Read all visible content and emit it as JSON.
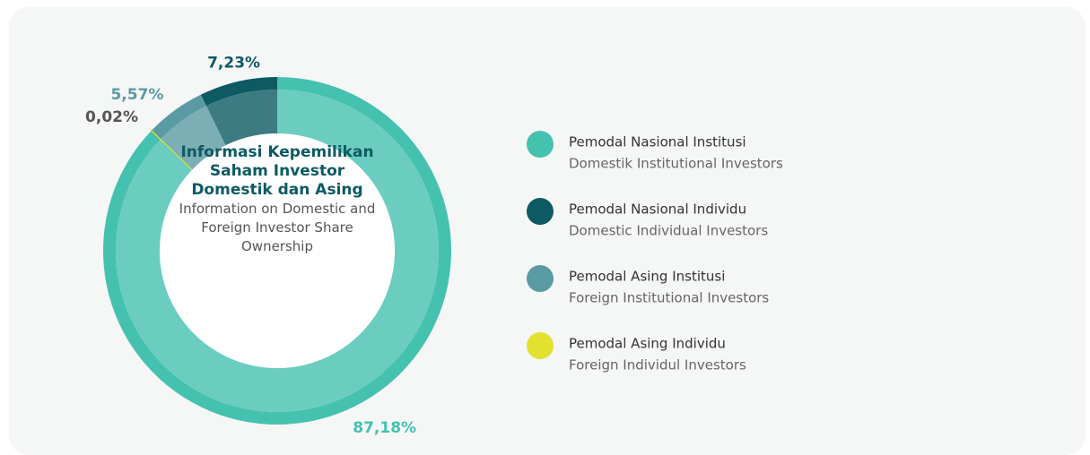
{
  "chart_data": {
    "type": "donut",
    "title": "Informasi Kepemilikan Saham Investor Domestik dan Asing",
    "subtitle": "Information on Domestic and Foreign Investor Share Ownership",
    "categories": [
      "Pemodal Nasional Institusi",
      "Pemodal Asing Individu",
      "Pemodal Asing Institusi",
      "Pemodal Nasional Individu"
    ],
    "categories_en": [
      "Domestik Institutional Investors",
      "Foreign Individul Investors",
      "Foreign Institutional Investors",
      "Domestic Individual Investors"
    ],
    "values": [
      87.18,
      0.02,
      5.57,
      7.23
    ],
    "value_labels": [
      "87,18%",
      "0,02%",
      "5,57%",
      "7,23%"
    ],
    "colors": [
      "#45c1b0",
      "#e3e12f",
      "#5a9aa3",
      "#0d5a63"
    ],
    "label_colors": [
      "#45c1b0",
      "#555555",
      "#5a9aa3",
      "#0d5a63"
    ],
    "legend_order": [
      0,
      3,
      2,
      1
    ]
  }
}
